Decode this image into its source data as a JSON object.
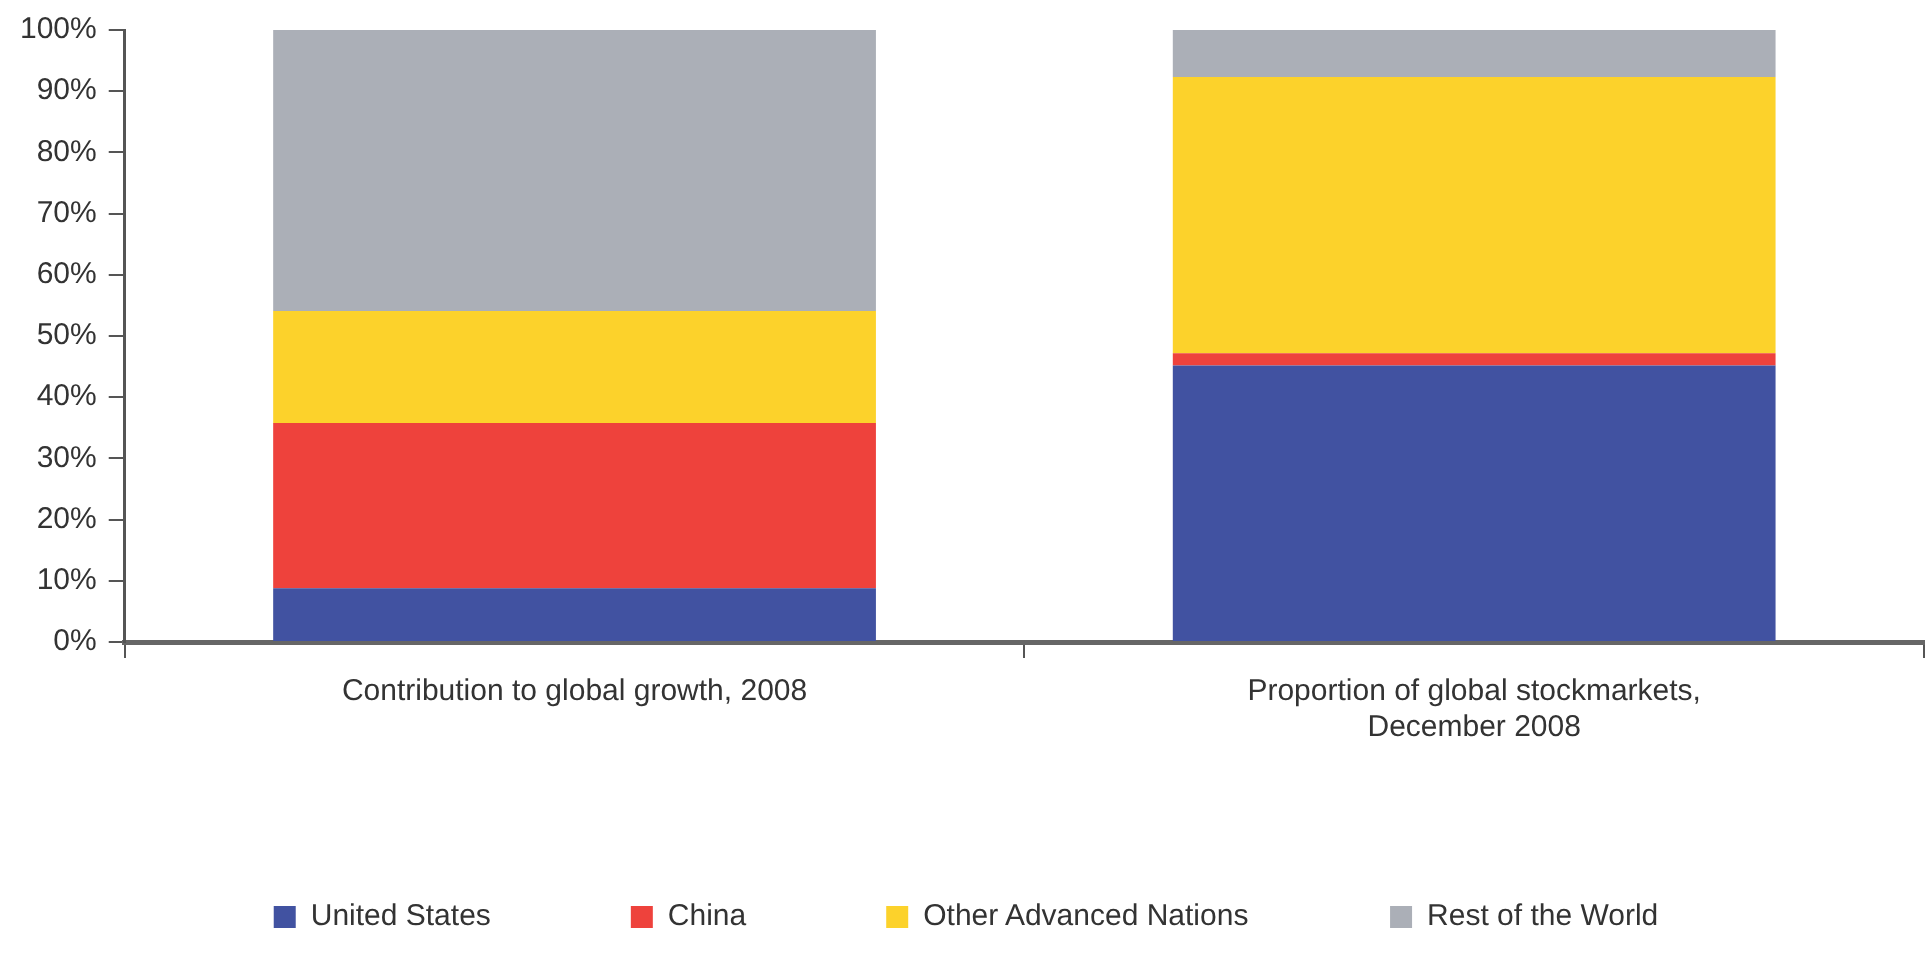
{
  "chart_data": {
    "type": "bar",
    "stacked": true,
    "categories": [
      "Contribution to global growth, 2008",
      "Proportion of global stockmarkets, December 2008"
    ],
    "series": [
      {
        "name": "United States",
        "color": "#4152a1",
        "values": [
          8.8,
          45.2
        ]
      },
      {
        "name": "China",
        "color": "#ee423c",
        "values": [
          27.0,
          2.0
        ]
      },
      {
        "name": "Other Advanced Nations",
        "color": "#fcd22b",
        "values": [
          18.3,
          45.1
        ]
      },
      {
        "name": "Rest of the World",
        "color": "#abafb7",
        "values": [
          45.9,
          7.7
        ]
      }
    ],
    "ylim": [
      0,
      100
    ],
    "yticks": [
      {
        "value": 0,
        "label": "0%"
      },
      {
        "value": 10,
        "label": "10%"
      },
      {
        "value": 20,
        "label": "20%"
      },
      {
        "value": 30,
        "label": "30%"
      },
      {
        "value": 40,
        "label": "40%"
      },
      {
        "value": 50,
        "label": "50%"
      },
      {
        "value": 60,
        "label": "60%"
      },
      {
        "value": 70,
        "label": "70%"
      },
      {
        "value": 80,
        "label": "80%"
      },
      {
        "value": 90,
        "label": "90%"
      },
      {
        "value": 100,
        "label": "100%"
      }
    ],
    "grid": false,
    "legend": "bottom"
  }
}
